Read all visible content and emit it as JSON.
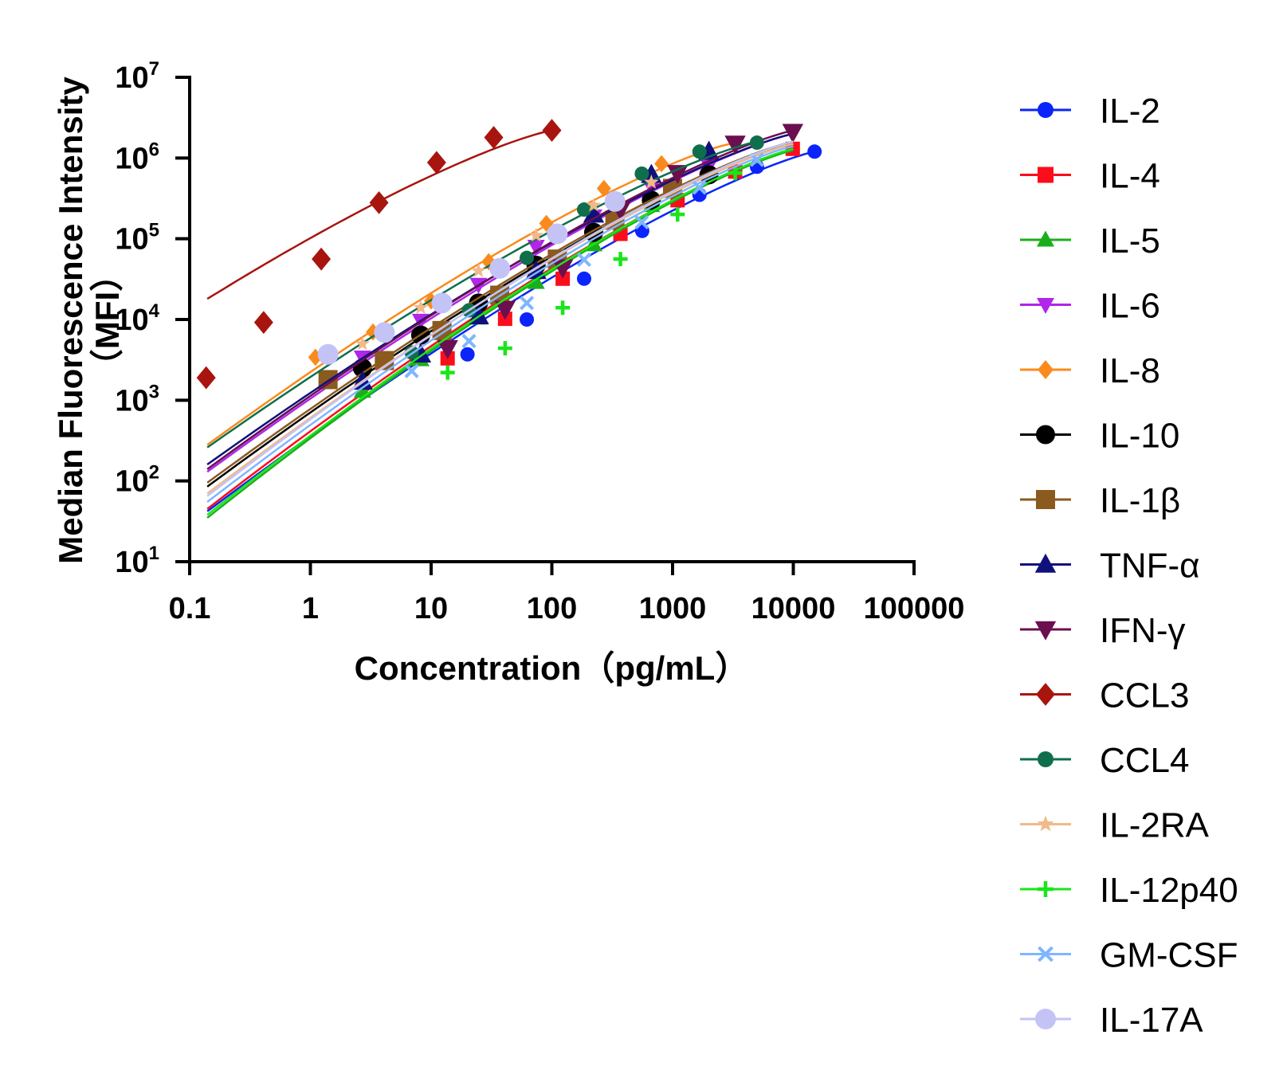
{
  "chart_data": {
    "type": "scatter",
    "xlabel": "Concentration（pg/mL）",
    "ylabel_line1": "Median Fluorescence Intensity",
    "ylabel_line2": "（MFI）",
    "xscale": "log",
    "yscale": "log",
    "xlim": [
      0.1,
      100000
    ],
    "ylim": [
      10,
      10000000
    ],
    "x_ticks": [
      {
        "value": 0.1,
        "label": "0.1"
      },
      {
        "value": 1,
        "label": "1"
      },
      {
        "value": 10,
        "label": "10"
      },
      {
        "value": 100,
        "label": "100"
      },
      {
        "value": 1000,
        "label": "1000"
      },
      {
        "value": 10000,
        "label": "10000"
      },
      {
        "value": 100000,
        "label": "100000"
      }
    ],
    "y_ticks": [
      {
        "value": 10,
        "base": "10",
        "exp": "1"
      },
      {
        "value": 100,
        "base": "10",
        "exp": "2"
      },
      {
        "value": 1000,
        "base": "10",
        "exp": "3"
      },
      {
        "value": 10000,
        "base": "10",
        "exp": "4"
      },
      {
        "value": 100000,
        "base": "10",
        "exp": "5"
      },
      {
        "value": 1000000,
        "base": "10",
        "exp": "6"
      },
      {
        "value": 10000000,
        "base": "10",
        "exp": "7"
      }
    ],
    "legend_position": "right",
    "series": [
      {
        "name": "IL-2",
        "color": "#0b24fb",
        "marker": "circle",
        "size": 9,
        "points": [
          [
            20,
            3700
          ],
          [
            62,
            10000
          ],
          [
            185,
            32000
          ],
          [
            560,
            125000
          ],
          [
            1670,
            350000
          ],
          [
            5000,
            780000
          ],
          [
            15000,
            1200000
          ]
        ],
        "curve": [
          [
            0.14,
            42
          ],
          [
            15000,
            1200000
          ]
        ]
      },
      {
        "name": "IL-4",
        "color": "#fc0d1b",
        "marker": "square",
        "size": 9,
        "points": [
          [
            13.7,
            3300
          ],
          [
            41,
            10200
          ],
          [
            123,
            32000
          ],
          [
            370,
            115000
          ],
          [
            1100,
            300000
          ],
          [
            3300,
            680000
          ],
          [
            9900,
            1300000
          ]
        ],
        "curve": [
          [
            0.14,
            45
          ],
          [
            9900,
            1250000
          ]
        ]
      },
      {
        "name": "IL-5",
        "color": "#1aaf1a",
        "marker": "triangle-up",
        "size": 10,
        "points": [
          [
            2.7,
            1300
          ],
          [
            8.2,
            3200
          ],
          [
            24.7,
            10500
          ],
          [
            74,
            29000
          ],
          [
            222,
            85000
          ],
          [
            667,
            260000
          ],
          [
            2000,
            650000
          ]
        ],
        "curve": [
          [
            0.14,
            35
          ],
          [
            10000,
            1250000
          ]
        ]
      },
      {
        "name": "IL-6",
        "color": "#b026ea",
        "marker": "triangle-down",
        "size": 10,
        "points": [
          [
            2.7,
            3400
          ],
          [
            8.2,
            9700
          ],
          [
            24.7,
            27000
          ],
          [
            74,
            80000
          ],
          [
            222,
            190000
          ],
          [
            667,
            440000
          ],
          [
            2000,
            800000
          ]
        ],
        "curve": [
          [
            0.14,
            130
          ],
          [
            10000,
            2000000
          ]
        ]
      },
      {
        "name": "IL-8",
        "color": "#fb8a1c",
        "marker": "diamond",
        "size": 9,
        "points": [
          [
            1.1,
            3400
          ],
          [
            3.3,
            7000
          ],
          [
            10,
            17000
          ],
          [
            30,
            52000
          ],
          [
            90,
            155000
          ],
          [
            270,
            420000
          ],
          [
            810,
            850000
          ]
        ],
        "curve": [
          [
            0.14,
            280
          ],
          [
            3000,
            1500000
          ]
        ]
      },
      {
        "name": "IL-10",
        "color": "#000000",
        "marker": "circle",
        "size": 12,
        "points": [
          [
            2.7,
            2500
          ],
          [
            8.2,
            6400
          ],
          [
            24.7,
            16000
          ],
          [
            74,
            47000
          ],
          [
            222,
            120000
          ],
          [
            667,
            300000
          ],
          [
            2000,
            620000
          ]
        ],
        "curve": [
          [
            0.14,
            85
          ],
          [
            10000,
            1500000
          ]
        ]
      },
      {
        "name": "IL-1β",
        "color": "#8b5a1e",
        "marker": "square",
        "size": 12,
        "points": [
          [
            1.4,
            1800
          ],
          [
            4.1,
            3100
          ],
          [
            12.3,
            7300
          ],
          [
            37,
            20000
          ],
          [
            111,
            56000
          ],
          [
            333,
            170000
          ],
          [
            1000,
            420000
          ]
        ],
        "curve": [
          [
            0.14,
            95
          ],
          [
            10000,
            1600000
          ]
        ]
      },
      {
        "name": "TNF-α",
        "color": "#10107d",
        "marker": "triangle-up",
        "size": 12,
        "points": [
          [
            2.7,
            1700
          ],
          [
            8.2,
            3700
          ],
          [
            24.7,
            11000
          ],
          [
            74,
            40000
          ],
          [
            222,
            200000
          ],
          [
            667,
            620000
          ],
          [
            2000,
            1200000
          ]
        ],
        "curve": [
          [
            0.14,
            160
          ],
          [
            10000,
            2000000
          ]
        ]
      },
      {
        "name": "IFN-γ",
        "color": "#6b0f4f",
        "marker": "triangle-down",
        "size": 12,
        "points": [
          [
            13.7,
            4400
          ],
          [
            41,
            13500
          ],
          [
            123,
            44000
          ],
          [
            370,
            230000
          ],
          [
            1100,
            650000
          ],
          [
            3300,
            1500000
          ],
          [
            9900,
            2100000
          ]
        ],
        "curve": [
          [
            0.14,
            140
          ],
          [
            10000,
            2200000
          ]
        ]
      },
      {
        "name": "CCL3",
        "color": "#a8150f",
        "marker": "diamond",
        "size": 12,
        "points": [
          [
            0.137,
            1900
          ],
          [
            0.41,
            9200
          ],
          [
            1.23,
            56000
          ],
          [
            3.7,
            280000
          ],
          [
            11.1,
            880000
          ],
          [
            33,
            1800000
          ],
          [
            100,
            2200000
          ]
        ],
        "curve": [
          [
            0.14,
            18000
          ],
          [
            100,
            2200000
          ]
        ]
      },
      {
        "name": "CCL4",
        "color": "#0f6f4c",
        "marker": "circle",
        "size": 9,
        "points": [
          [
            6.9,
            3900
          ],
          [
            20.6,
            13000
          ],
          [
            62,
            58000
          ],
          [
            185,
            230000
          ],
          [
            556,
            640000
          ],
          [
            1670,
            1200000
          ],
          [
            5000,
            1550000
          ]
        ],
        "curve": [
          [
            0.14,
            260
          ],
          [
            5000,
            1600000
          ]
        ]
      },
      {
        "name": "IL-2RA",
        "color": "#f2b98a",
        "marker": "star",
        "size": 9,
        "points": [
          [
            2.7,
            5000
          ],
          [
            8.2,
            14000
          ],
          [
            24.7,
            40000
          ],
          [
            74,
            110000
          ],
          [
            222,
            260000
          ],
          [
            667,
            500000
          ]
        ],
        "curve": [
          [
            0.14,
            70
          ],
          [
            10000,
            1500000
          ]
        ]
      },
      {
        "name": "IL-12p40",
        "color": "#19e619",
        "marker": "plus",
        "size": 9,
        "points": [
          [
            13.7,
            2200
          ],
          [
            41,
            4400
          ],
          [
            123,
            14000
          ],
          [
            370,
            56000
          ],
          [
            1100,
            200000
          ],
          [
            3300,
            650000
          ]
        ],
        "curve": [
          [
            0.14,
            38
          ],
          [
            10000,
            1300000
          ]
        ]
      },
      {
        "name": "GM-CSF",
        "color": "#7eb6ff",
        "marker": "cross",
        "size": 9,
        "points": [
          [
            6.9,
            2300
          ],
          [
            20.6,
            5400
          ],
          [
            62,
            16000
          ],
          [
            185,
            55000
          ],
          [
            556,
            160000
          ],
          [
            1670,
            430000
          ],
          [
            5000,
            950000
          ]
        ],
        "curve": [
          [
            0.14,
            55
          ],
          [
            10000,
            1400000
          ]
        ]
      },
      {
        "name": "IL-17A",
        "color": "#c3c3f6",
        "marker": "circle",
        "size": 13,
        "points": [
          [
            1.4,
            3700
          ],
          [
            4.1,
            6900
          ],
          [
            12.3,
            16000
          ],
          [
            37,
            43000
          ],
          [
            111,
            115000
          ],
          [
            333,
            290000
          ]
        ],
        "curve": [
          [
            0.14,
            65
          ],
          [
            10000,
            1600000
          ]
        ]
      }
    ]
  }
}
